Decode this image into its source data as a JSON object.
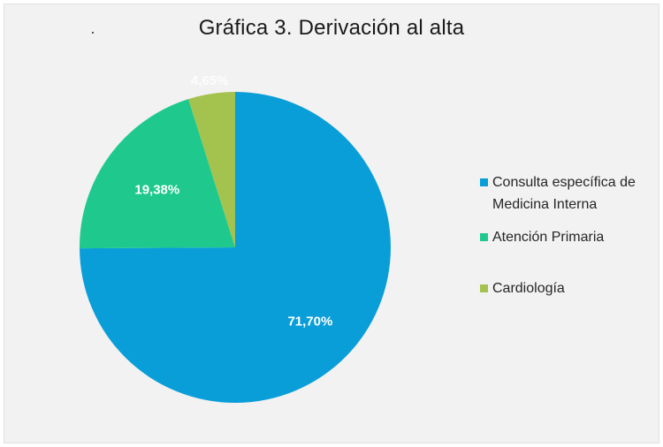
{
  "chart_data": {
    "type": "pie",
    "title": "Gráfica 3. Derivación al alta",
    "categories": [
      "Consulta específica de Medicina Interna",
      "Atención Primaria",
      "Cardiología"
    ],
    "values": [
      71.7,
      19.38,
      4.65
    ],
    "value_labels": [
      "71,70%",
      "19,38%",
      "4,65%"
    ],
    "colors": [
      "#0a9ed9",
      "#1fc98e",
      "#a4c24e"
    ],
    "start_angle_deg": 0,
    "direction": "clockwise",
    "legend_position": "right"
  }
}
